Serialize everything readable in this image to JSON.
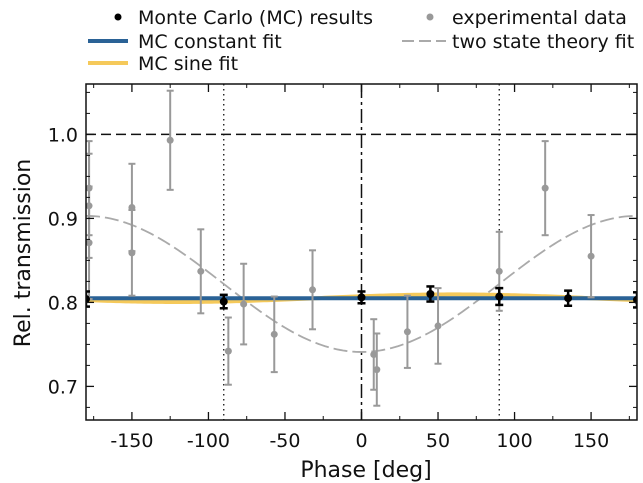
{
  "chart_data": {
    "type": "scatter",
    "xlabel": "Phase [deg]",
    "ylabel": "Rel. transmission",
    "xlim": [
      -180,
      180
    ],
    "ylim": [
      0.66,
      1.06
    ],
    "xticks": [
      -150,
      -100,
      -50,
      0,
      50,
      100,
      150
    ],
    "yticks": [
      0.7,
      0.8,
      0.9,
      1.0
    ],
    "grid": false,
    "legend_placement": "top",
    "reference_lines": {
      "horizontal_dashed_y": 1.0,
      "vertical_dashed_x": 0,
      "vertical_dotted_x": [
        -90,
        90
      ]
    },
    "colors": {
      "mc": "#000000",
      "experimental": "#999999",
      "constant_fit": "#2a6296",
      "sine_fit": "#f5c95a",
      "theory": "#aaaaaa"
    },
    "legend": [
      {
        "key": "mc",
        "label": "Monte Carlo (MC) results",
        "marker": "dot"
      },
      {
        "key": "experimental",
        "label": "experimental data",
        "marker": "dot"
      },
      {
        "key": "constant_fit",
        "label": "MC constant fit",
        "marker": "line"
      },
      {
        "key": "theory",
        "label": "two state theory fit",
        "marker": "dash"
      },
      {
        "key": "sine_fit",
        "label": "MC sine fit",
        "marker": "line"
      }
    ],
    "series": [
      {
        "key": "mc",
        "name": "Monte Carlo (MC) results",
        "points": [
          {
            "x": -180,
            "y": 0.804,
            "err": 0.009
          },
          {
            "x": -90,
            "y": 0.801,
            "err": 0.008
          },
          {
            "x": 0,
            "y": 0.806,
            "err": 0.007
          },
          {
            "x": 45,
            "y": 0.81,
            "err": 0.009
          },
          {
            "x": 90,
            "y": 0.807,
            "err": 0.01
          },
          {
            "x": 135,
            "y": 0.805,
            "err": 0.009
          },
          {
            "x": 180,
            "y": 0.803,
            "err": 0.009
          }
        ]
      },
      {
        "key": "experimental",
        "name": "experimental data",
        "points": [
          {
            "x": -178,
            "y": 0.936,
            "err": 0.056
          },
          {
            "x": -178,
            "y": 0.915,
            "err": 0.062
          },
          {
            "x": -178,
            "y": 0.871,
            "err": 0.067
          },
          {
            "x": -150,
            "y": 0.913,
            "err": 0.052
          },
          {
            "x": -150,
            "y": 0.859,
            "err": 0.051
          },
          {
            "x": -125,
            "y": 0.993,
            "err": 0.059
          },
          {
            "x": -105,
            "y": 0.837,
            "err": 0.05
          },
          {
            "x": -87,
            "y": 0.742,
            "err": 0.04
          },
          {
            "x": -77,
            "y": 0.798,
            "err": 0.048
          },
          {
            "x": -57,
            "y": 0.762,
            "err": 0.045
          },
          {
            "x": -32,
            "y": 0.815,
            "err": 0.047
          },
          {
            "x": 8,
            "y": 0.738,
            "err": 0.042
          },
          {
            "x": 10,
            "y": 0.72,
            "err": 0.043
          },
          {
            "x": 30,
            "y": 0.765,
            "err": 0.043
          },
          {
            "x": 50,
            "y": 0.772,
            "err": 0.045
          },
          {
            "x": 90,
            "y": 0.837,
            "err": 0.047
          },
          {
            "x": 120,
            "y": 0.936,
            "err": 0.056
          },
          {
            "x": 150,
            "y": 0.855,
            "err": 0.049
          }
        ]
      },
      {
        "key": "constant_fit",
        "name": "MC constant fit",
        "y": 0.805
      },
      {
        "key": "sine_fit",
        "name": "MC sine fit",
        "mean": 0.805,
        "amplitude": 0.0045,
        "phase_peak_deg": 60
      },
      {
        "key": "theory",
        "name": "two state theory fit",
        "mean": 0.822,
        "amplitude": 0.081,
        "phase_peak_deg": 180
      }
    ]
  }
}
